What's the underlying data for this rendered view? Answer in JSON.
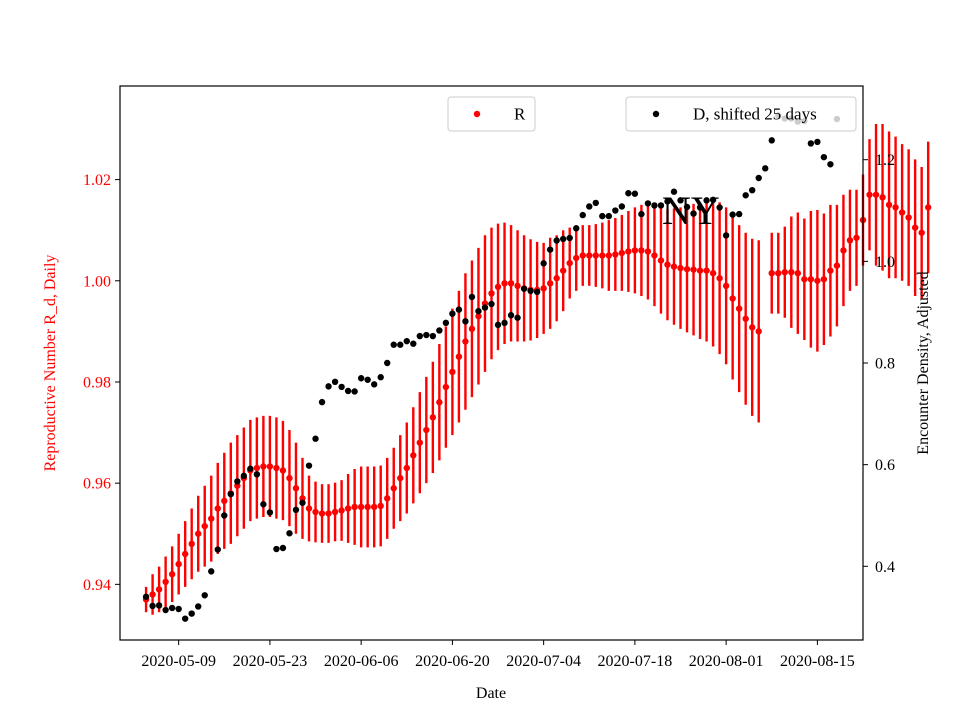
{
  "chart_data": {
    "type": "scatter",
    "title": "",
    "annotation": "NY",
    "xlabel": "Date",
    "ylabel_left": "Reproductive Number R_d, Daily",
    "ylabel_right": "Encounter Density, Adjusted",
    "x_ticks": [
      "2020-05-09",
      "2020-05-23",
      "2020-06-06",
      "2020-06-20",
      "2020-07-04",
      "2020-07-18",
      "2020-08-01",
      "2020-08-15"
    ],
    "y_left_ticks": [
      "0.94",
      "0.96",
      "0.98",
      "1.00",
      "1.02"
    ],
    "y_right_ticks": [
      "0.4",
      "0.6",
      "0.8",
      "1.0",
      "1.2"
    ],
    "xlim": [
      "2020-04-30",
      "2020-08-22"
    ],
    "ylim_left": [
      0.929,
      1.0385
    ],
    "ylim_right": [
      0.255,
      1.345
    ],
    "grid": false,
    "legend": [
      {
        "label": "R",
        "color": "#ff0000",
        "placement": "top-center"
      },
      {
        "label": "D, shifted 25 days",
        "color": "#000000",
        "placement": "top-right"
      }
    ],
    "colors": {
      "R": "#ff0000",
      "D": "#000000",
      "left_axis": "#ff0000",
      "right_axis": "#000000"
    },
    "series": [
      {
        "name": "R",
        "axis": "left",
        "start_date": "2020-05-04",
        "values": [
          0.937,
          0.938,
          0.939,
          0.9405,
          0.942,
          0.944,
          0.946,
          0.948,
          0.95,
          0.9515,
          0.953,
          0.955,
          0.9565,
          0.958,
          0.9595,
          0.961,
          0.9625,
          0.963,
          0.9633,
          0.9633,
          0.963,
          0.9625,
          0.961,
          0.959,
          0.957,
          0.955,
          0.9543,
          0.954,
          0.954,
          0.9543,
          0.9546,
          0.955,
          0.9553,
          0.9553,
          0.9553,
          0.9553,
          0.9555,
          0.957,
          0.959,
          0.961,
          0.963,
          0.9655,
          0.968,
          0.9705,
          0.973,
          0.976,
          0.979,
          0.982,
          0.985,
          0.988,
          0.9905,
          0.993,
          0.9955,
          0.9975,
          0.9988,
          0.9995,
          0.9995,
          0.999,
          0.9985,
          0.9982,
          0.9982,
          0.9985,
          0.9995,
          1.0005,
          1.002,
          1.0035,
          1.0045,
          1.005,
          1.005,
          1.005,
          1.005,
          1.005,
          1.0052,
          1.0055,
          1.0058,
          1.006,
          1.006,
          1.0058,
          1.005,
          1.004,
          1.0032,
          1.0028,
          1.0025,
          1.0023,
          1.0022,
          1.002,
          1.002,
          1.0015,
          1.0005,
          0.999,
          0.9965,
          0.9945,
          0.9925,
          0.9908,
          0.99,
          null,
          1.0015,
          1.0015,
          1.0017,
          1.0017,
          1.0015,
          1.0003,
          1.0003,
          1.0,
          1.0003,
          1.002,
          1.003,
          1.006,
          1.008,
          1.0085,
          1.012,
          1.017,
          1.017,
          1.0165,
          1.015,
          1.0145,
          1.0135,
          1.0125,
          1.0105,
          1.0095,
          1.0145
        ],
        "err": [
          0.0025,
          0.004,
          0.0045,
          0.005,
          0.0055,
          0.006,
          0.0065,
          0.007,
          0.0075,
          0.008,
          0.0085,
          0.009,
          0.0095,
          0.01,
          0.01,
          0.01,
          0.01,
          0.01,
          0.01,
          0.01,
          0.01,
          0.0098,
          0.0095,
          0.009,
          0.008,
          0.0065,
          0.006,
          0.0058,
          0.0058,
          0.0058,
          0.006,
          0.0068,
          0.0075,
          0.008,
          0.008,
          0.008,
          0.008,
          0.008,
          0.008,
          0.0085,
          0.009,
          0.0095,
          0.01,
          0.0105,
          0.011,
          0.0115,
          0.012,
          0.0125,
          0.013,
          0.0135,
          0.0135,
          0.0135,
          0.0135,
          0.013,
          0.0125,
          0.012,
          0.0115,
          0.011,
          0.0105,
          0.01,
          0.0095,
          0.009,
          0.009,
          0.0085,
          0.008,
          0.007,
          0.0065,
          0.006,
          0.006,
          0.0062,
          0.0065,
          0.007,
          0.0072,
          0.0075,
          0.008,
          0.0085,
          0.009,
          0.0095,
          0.01,
          0.0105,
          0.011,
          0.0115,
          0.012,
          0.0125,
          0.013,
          0.0135,
          0.014,
          0.0145,
          0.015,
          0.0155,
          0.016,
          0.0165,
          0.017,
          0.0175,
          0.018,
          null,
          0.008,
          0.008,
          0.009,
          0.011,
          0.012,
          0.012,
          0.0135,
          0.014,
          0.013,
          0.013,
          0.012,
          0.011,
          0.01,
          0.0095,
          0.009,
          0.011,
          0.014,
          0.0145,
          0.0145,
          0.014,
          0.0135,
          0.0135,
          0.0135,
          0.013,
          0.013
        ]
      },
      {
        "name": "D, shifted 25 days",
        "axis": "right",
        "start_date": "2020-05-04",
        "values": [
          0.34,
          0.322,
          0.323,
          0.314,
          0.318,
          0.316,
          0.297,
          0.307,
          0.321,
          0.343,
          0.39,
          0.433,
          0.5,
          0.542,
          0.567,
          0.578,
          0.592,
          0.581,
          0.522,
          0.506,
          0.434,
          0.436,
          0.465,
          0.511,
          0.525,
          0.598,
          0.651,
          0.723,
          0.754,
          0.763,
          0.753,
          0.745,
          0.744,
          0.77,
          0.767,
          0.758,
          0.772,
          0.8,
          0.836,
          0.836,
          0.843,
          0.838,
          0.853,
          0.855,
          0.853,
          0.864,
          0.879,
          0.897,
          0.905,
          0.882,
          0.93,
          0.902,
          0.909,
          0.916,
          0.875,
          0.879,
          0.894,
          0.889,
          0.946,
          0.942,
          0.94,
          0.996,
          1.023,
          1.041,
          1.044,
          1.046,
          1.065,
          1.091,
          1.108,
          1.115,
          1.089,
          1.089,
          1.1,
          1.108,
          1.134,
          1.133,
          1.093,
          1.114,
          1.11,
          1.11,
          1.118,
          1.137,
          1.12,
          1.107,
          1.094,
          1.106,
          1.12,
          1.121,
          1.106,
          1.051,
          1.092,
          1.093,
          1.13,
          1.14,
          1.164,
          1.183,
          1.238,
          1.287,
          1.281,
          1.281,
          1.275,
          1.276,
          1.232,
          1.235,
          1.205,
          1.191,
          1.28
        ]
      }
    ]
  }
}
